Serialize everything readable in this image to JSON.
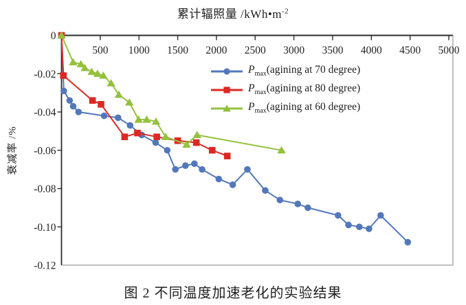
{
  "figure": {
    "title": {
      "text": "累计辐照量 /kWh•m",
      "superscript": "-2"
    },
    "y_axis_title": "衰减率 /%",
    "caption": "图 2 不同温度加速老化的实验结果"
  },
  "colors": {
    "axis": "#2b2b2b",
    "box_light": "#9a9a9a",
    "text": "#1f1f1f",
    "series_70deg_blue": "#5377bb",
    "series_80deg_red": "#dd2823",
    "series_60deg_green": "#94c13d"
  },
  "chart_data": {
    "type": "line",
    "title": "累计辐照量 /kWh•m⁻²",
    "xlabel": "累计辐照量 /kWh•m⁻²",
    "ylabel": "衰减率 /%",
    "grid": false,
    "x_axis": {
      "position": "top",
      "min": 0,
      "max": 5000,
      "ticks": [
        500,
        1000,
        1500,
        2000,
        2500,
        3000,
        3500,
        4000,
        4500,
        5000
      ]
    },
    "y_axis": {
      "min": -0.12,
      "max": 0,
      "ticks": [
        {
          "value": 0,
          "label": "0"
        },
        {
          "value": -0.02,
          "label": "-0.02"
        },
        {
          "value": -0.04,
          "label": "-0.04"
        },
        {
          "value": -0.06,
          "label": "-0.06"
        },
        {
          "value": -0.08,
          "label": "-0.08"
        },
        {
          "value": -0.1,
          "label": "-0.10"
        },
        {
          "value": -0.12,
          "label": "-0.12"
        }
      ]
    },
    "legend": {
      "position": "inside-upper-right"
    },
    "series": [
      {
        "name": "Pmax(agining at 70 degree)",
        "legend_label": {
          "prefix": "P",
          "sub": "max",
          "rest": "(agining at 70 degree)"
        },
        "color": "#5377bb",
        "marker": "circle",
        "points": [
          [
            0,
            0
          ],
          [
            30,
            -0.029
          ],
          [
            105,
            -0.034
          ],
          [
            150,
            -0.037
          ],
          [
            220,
            -0.04
          ],
          [
            550,
            -0.042
          ],
          [
            730,
            -0.043
          ],
          [
            885,
            -0.047
          ],
          [
            1035,
            -0.052
          ],
          [
            1215,
            -0.056
          ],
          [
            1365,
            -0.06
          ],
          [
            1470,
            -0.07
          ],
          [
            1600,
            -0.068
          ],
          [
            1715,
            -0.067
          ],
          [
            1815,
            -0.07
          ],
          [
            2030,
            -0.075
          ],
          [
            2210,
            -0.078
          ],
          [
            2400,
            -0.07
          ],
          [
            2630,
            -0.081
          ],
          [
            2820,
            -0.086
          ],
          [
            3050,
            -0.088
          ],
          [
            3180,
            -0.09
          ],
          [
            3570,
            -0.094
          ],
          [
            3705,
            -0.099
          ],
          [
            3845,
            -0.1
          ],
          [
            3970,
            -0.101
          ],
          [
            4120,
            -0.094
          ],
          [
            4470,
            -0.108
          ]
        ]
      },
      {
        "name": "Pmax(agining at 80 degree)",
        "legend_label": {
          "prefix": "P",
          "sub": "max",
          "rest": "(agining at 80 degree)"
        },
        "color": "#dd2823",
        "marker": "square",
        "points": [
          [
            0,
            0
          ],
          [
            25,
            -0.021
          ],
          [
            400,
            -0.034
          ],
          [
            510,
            -0.036
          ],
          [
            815,
            -0.053
          ],
          [
            980,
            -0.051
          ],
          [
            1230,
            -0.053
          ],
          [
            1500,
            -0.055
          ],
          [
            1740,
            -0.056
          ],
          [
            1945,
            -0.06
          ],
          [
            2140,
            -0.063
          ]
        ]
      },
      {
        "name": "Pmax(agining at 60 degree)",
        "legend_label": {
          "prefix": "P",
          "sub": "max",
          "rest": "(agining at 60 degree)"
        },
        "color": "#94c13d",
        "marker": "triangle",
        "points": [
          [
            0,
            0
          ],
          [
            150,
            -0.014
          ],
          [
            250,
            -0.015
          ],
          [
            300,
            -0.017
          ],
          [
            390,
            -0.019
          ],
          [
            465,
            -0.02
          ],
          [
            540,
            -0.021
          ],
          [
            640,
            -0.025
          ],
          [
            740,
            -0.031
          ],
          [
            875,
            -0.035
          ],
          [
            995,
            -0.044
          ],
          [
            1100,
            -0.044
          ],
          [
            1220,
            -0.045
          ],
          [
            1345,
            -0.053
          ],
          [
            1615,
            -0.057
          ],
          [
            1750,
            -0.052
          ],
          [
            2840,
            -0.06
          ]
        ]
      }
    ]
  }
}
